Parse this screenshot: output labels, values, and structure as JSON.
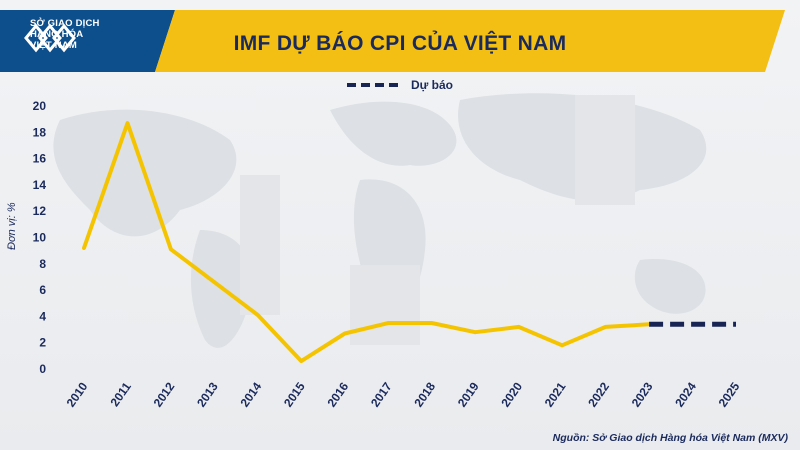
{
  "logo": {
    "line1": "SỞ GIAO DỊCH",
    "line2": "HÀNG HÓA",
    "line3": "VIỆT NAM",
    "icon": "mxv-logo-icon"
  },
  "source": "Nguồn: Sở Giao dịch Hàng hóa Việt Nam (MXV)",
  "colors": {
    "banner": "#f3bf14",
    "banner_dark": "#0d4e8c",
    "actual_line": "#f5c400",
    "forecast_line": "#182454",
    "text": "#1b2a5c"
  },
  "chart_data": {
    "type": "line",
    "title": "IMF DỰ BÁO CPI CỦA VIỆT NAM",
    "ylabel": "Đơn vị: %",
    "xlabel": "",
    "ylim": [
      0,
      20
    ],
    "yticks": [
      0,
      2,
      4,
      6,
      8,
      10,
      12,
      14,
      16,
      18,
      20
    ],
    "categories": [
      "2010",
      "2011",
      "2012",
      "2013",
      "2014",
      "2015",
      "2016",
      "2017",
      "2018",
      "2019",
      "2020",
      "2021",
      "2022",
      "2023",
      "2024",
      "2025"
    ],
    "grid": false,
    "legend_position": "top-center",
    "series": [
      {
        "values": [
          9.2,
          18.7,
          9.1,
          6.6,
          4.1,
          0.6,
          2.7,
          3.5,
          3.5,
          2.8,
          3.2,
          1.8,
          3.2,
          3.4,
          null,
          null
        ],
        "style": "solid"
      },
      {
        "name": "Dự báo",
        "values": [
          null,
          null,
          null,
          null,
          null,
          null,
          null,
          null,
          null,
          null,
          null,
          null,
          null,
          3.4,
          3.4,
          3.4
        ],
        "style": "dashed"
      }
    ]
  }
}
